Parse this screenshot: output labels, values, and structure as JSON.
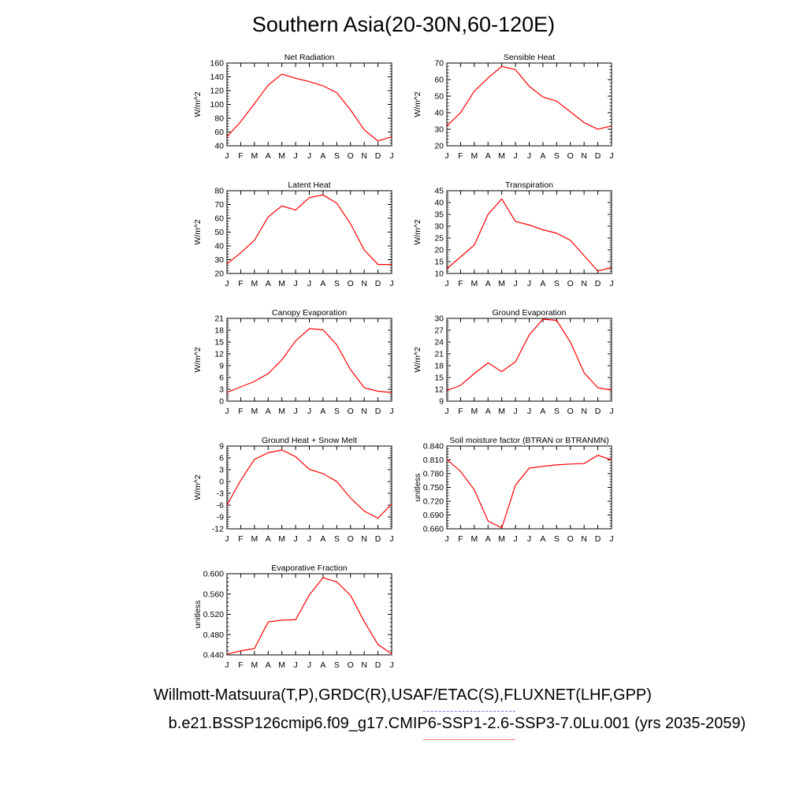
{
  "title": "Southern Asia(20-30N,60-120E)",
  "footer": {
    "line1": "Willmott-Matsuura(T,P),GRDC(R),USAF/ETAC(S),FLUXNET(LHF,GPP)",
    "line2": "b.e21.BSSP126cmip6.f09_g17.CMIP6-SSP1-2.6-SSP3-7.0Lu.001 (yrs 2035-2059)"
  },
  "colors": {
    "model_line": "#ff0000",
    "axis": "#000000",
    "obs_legend": "#7a7ae0",
    "model_legend": "#ff6f6f"
  },
  "chart_data": [
    {
      "type": "line",
      "title": "Net Radiation",
      "ylabel": "W/m^2",
      "categories": [
        "J",
        "F",
        "M",
        "A",
        "M",
        "J",
        "J",
        "A",
        "S",
        "O",
        "N",
        "D",
        "J"
      ],
      "ylim": [
        40,
        160
      ],
      "yticks": [
        "40",
        "60",
        "80",
        "100",
        "120",
        "140",
        "160"
      ],
      "series": [
        {
          "values": [
            53,
            75,
            101,
            128,
            144,
            138,
            133,
            127,
            117,
            92,
            63,
            47,
            53
          ]
        }
      ]
    },
    {
      "type": "line",
      "title": "Sensible Heat",
      "ylabel": "W/m^2",
      "categories": [
        "J",
        "F",
        "M",
        "A",
        "M",
        "J",
        "J",
        "A",
        "S",
        "O",
        "N",
        "D",
        "J"
      ],
      "ylim": [
        20,
        70
      ],
      "yticks": [
        "20",
        "30",
        "40",
        "50",
        "60",
        "70"
      ],
      "series": [
        {
          "values": [
            32,
            40,
            53,
            61,
            68,
            66,
            56,
            49.5,
            47,
            40.5,
            34,
            30,
            32
          ]
        }
      ]
    },
    {
      "type": "line",
      "title": "Latent Heat",
      "ylabel": "W/m^2",
      "categories": [
        "J",
        "F",
        "M",
        "A",
        "M",
        "J",
        "J",
        "A",
        "S",
        "O",
        "N",
        "D",
        "J"
      ],
      "ylim": [
        20,
        80
      ],
      "yticks": [
        "20",
        "30",
        "40",
        "50",
        "60",
        "70",
        "80"
      ],
      "series": [
        {
          "values": [
            27,
            35,
            44,
            61,
            69,
            66,
            75,
            77,
            71,
            56,
            37,
            26.5,
            26.5
          ]
        }
      ]
    },
    {
      "type": "line",
      "title": "Transpiration",
      "ylabel": "W/m^2",
      "categories": [
        "J",
        "F",
        "M",
        "A",
        "M",
        "J",
        "J",
        "A",
        "S",
        "O",
        "N",
        "D",
        "J"
      ],
      "ylim": [
        10,
        45
      ],
      "yticks": [
        "10",
        "15",
        "20",
        "25",
        "30",
        "35",
        "40",
        "45"
      ],
      "series": [
        {
          "values": [
            12,
            17,
            22,
            35,
            41.5,
            32,
            30.5,
            28.5,
            27,
            24,
            17.5,
            11,
            12.5
          ]
        }
      ]
    },
    {
      "type": "line",
      "title": "Canopy Evaporation",
      "ylabel": "W/m^2",
      "categories": [
        "J",
        "F",
        "M",
        "A",
        "M",
        "J",
        "J",
        "A",
        "S",
        "O",
        "N",
        "D",
        "J"
      ],
      "ylim": [
        0,
        21
      ],
      "yticks": [
        "0",
        "3",
        "6",
        "9",
        "12",
        "15",
        "18",
        "21"
      ],
      "series": [
        {
          "values": [
            2.2,
            3.6,
            5,
            7,
            10.5,
            15.3,
            18.4,
            18.1,
            14.3,
            8,
            3.4,
            2.5,
            2.2
          ]
        }
      ]
    },
    {
      "type": "line",
      "title": "Ground Evaporation",
      "ylabel": "W/m^2",
      "categories": [
        "J",
        "F",
        "M",
        "A",
        "M",
        "J",
        "J",
        "A",
        "S",
        "O",
        "N",
        "D",
        "J"
      ],
      "ylim": [
        9,
        30
      ],
      "yticks": [
        "9",
        "12",
        "15",
        "18",
        "21",
        "24",
        "27",
        "30"
      ],
      "series": [
        {
          "values": [
            11.7,
            13,
            16,
            18.7,
            16.5,
            19,
            25.8,
            29.8,
            29.5,
            24,
            16.2,
            12.4,
            11.8
          ]
        }
      ]
    },
    {
      "type": "line",
      "title": "Ground Heat + Snow Melt",
      "ylabel": "W/m^2",
      "categories": [
        "J",
        "F",
        "M",
        "A",
        "M",
        "J",
        "J",
        "A",
        "S",
        "O",
        "N",
        "D",
        "J"
      ],
      "ylim": [
        -12,
        9
      ],
      "yticks": [
        "-12",
        "-9",
        "-6",
        "-3",
        "0",
        "3",
        "6",
        "9"
      ],
      "series": [
        {
          "values": [
            -6,
            0.3,
            5.6,
            7.3,
            8,
            6.3,
            3.1,
            2,
            0,
            -4.2,
            -7.5,
            -9.3,
            -5.7
          ]
        }
      ]
    },
    {
      "type": "line",
      "title": "Soil moisture factor (BTRAN or BTRANMN)",
      "ylabel": "unitless",
      "categories": [
        "J",
        "F",
        "M",
        "A",
        "M",
        "J",
        "J",
        "A",
        "S",
        "O",
        "N",
        "D",
        "J"
      ],
      "ylim": [
        0.66,
        0.84
      ],
      "yticks": [
        "0.660",
        "0.690",
        "0.720",
        "0.750",
        "0.780",
        "0.810",
        "0.840"
      ],
      "series": [
        {
          "values": [
            0.811,
            0.785,
            0.745,
            0.677,
            0.662,
            0.755,
            0.792,
            0.796,
            0.799,
            0.801,
            0.802,
            0.82,
            0.81
          ]
        }
      ]
    },
    {
      "type": "line",
      "title": "Evaporative Fraction",
      "ylabel": "unitless",
      "categories": [
        "J",
        "F",
        "M",
        "A",
        "M",
        "J",
        "J",
        "A",
        "S",
        "O",
        "N",
        "D",
        "J"
      ],
      "ylim": [
        0.42,
        0.6
      ],
      "yticks": [
        "0.440",
        "0.480",
        "0.520",
        "0.560",
        "0.600"
      ],
      "series": [
        {
          "values": [
            0.422,
            0.429,
            0.434,
            0.493,
            0.497,
            0.498,
            0.553,
            0.591,
            0.582,
            0.552,
            0.494,
            0.443,
            0.422
          ]
        }
      ]
    }
  ]
}
